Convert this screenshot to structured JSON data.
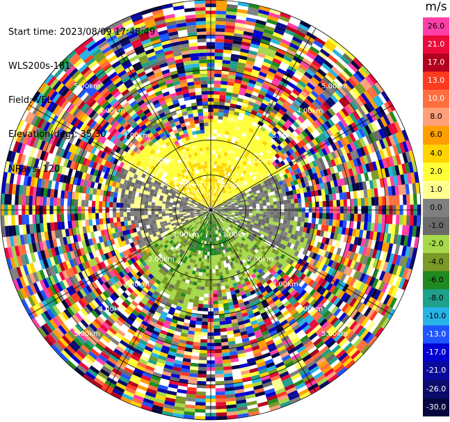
{
  "header": {
    "start_time": "Start time: 2023/08/09 17:48:49",
    "instrument": "WLS200s-181",
    "field": "Field: VEL",
    "elevation": "Elevation(deg): 35.30",
    "nrays": "NRays: 120"
  },
  "colorbar": {
    "unit": "m/s",
    "entries": [
      {
        "label": "26.0",
        "color": "#ff3fa8",
        "text": "#000000"
      },
      {
        "label": "21.0",
        "color": "#ea0b3a",
        "text": "#ffffff"
      },
      {
        "label": "17.0",
        "color": "#b3001e",
        "text": "#ffffff"
      },
      {
        "label": "13.0",
        "color": "#ff3b1f",
        "text": "#ffffff"
      },
      {
        "label": "10.0",
        "color": "#ff6f3f",
        "text": "#ffffff"
      },
      {
        "label": "8.0",
        "color": "#ffa07a",
        "text": "#000000"
      },
      {
        "label": "6.0",
        "color": "#ff9e00",
        "text": "#000000"
      },
      {
        "label": "4.0",
        "color": "#ffd400",
        "text": "#000000"
      },
      {
        "label": "2.0",
        "color": "#ffff3a",
        "text": "#000000"
      },
      {
        "label": "1.0",
        "color": "#ffff90",
        "text": "#000000"
      },
      {
        "label": "0.0",
        "color": "#808080",
        "text": "#000000"
      },
      {
        "label": "-1.0",
        "color": "#6a6a6a",
        "text": "#000000"
      },
      {
        "label": "-2.0",
        "color": "#a6d84a",
        "text": "#000000"
      },
      {
        "label": "-4.0",
        "color": "#7a9a28",
        "text": "#000000"
      },
      {
        "label": "-6.0",
        "color": "#1f8a1f",
        "text": "#000000"
      },
      {
        "label": "-8.0",
        "color": "#1fa08a",
        "text": "#000000"
      },
      {
        "label": "-10.0",
        "color": "#28b4e6",
        "text": "#000000"
      },
      {
        "label": "-13.0",
        "color": "#1f55ff",
        "text": "#ffffff"
      },
      {
        "label": "-17.0",
        "color": "#0000d0",
        "text": "#ffffff"
      },
      {
        "label": "-21.0",
        "color": "#0a0a9a",
        "text": "#ffffff"
      },
      {
        "label": "-26.0",
        "color": "#0b0b6b",
        "text": "#ffffff"
      },
      {
        "label": "-30.0",
        "color": "#06063f",
        "text": "#ffffff"
      }
    ]
  },
  "chart_data": {
    "type": "heatmap",
    "projection": "polar PPI",
    "field": "VEL",
    "unit": "m/s",
    "n_rays": 120,
    "ray_step_deg": 3,
    "max_range_km": 6.0,
    "range_rings_km": [
      1.0,
      2.0,
      3.0,
      4.0,
      5.0,
      6.0
    ],
    "ring_labels": [
      "1.00km",
      "2.00km",
      "3.00km",
      "4.00km",
      "5.00km"
    ],
    "spokes_deg": [
      0,
      30,
      60,
      90,
      120,
      150,
      180,
      210,
      240,
      270,
      300,
      330
    ],
    "velocity_regions": [
      {
        "range_km": [
          0.0,
          2.6
        ],
        "azimuth_deg": [
          270,
          90
        ],
        "dominant_velocity_ms": 2.0,
        "note": "north half yellow/orange"
      },
      {
        "range_km": [
          0.0,
          2.6
        ],
        "azimuth_deg": [
          90,
          270
        ],
        "dominant_velocity_ms": -3.0,
        "note": "south half green"
      },
      {
        "range_km": [
          0.0,
          3.0
        ],
        "azimuth_deg": [
          60,
          120
        ],
        "dominant_velocity_ms": -0.5,
        "note": "east sector gray"
      },
      {
        "range_km": [
          0.0,
          3.0
        ],
        "azimuth_deg": [
          240,
          300
        ],
        "dominant_velocity_ms": -0.5,
        "note": "west sector gray"
      },
      {
        "range_km": [
          2.6,
          6.0
        ],
        "azimuth_deg": [
          0,
          360
        ],
        "dominant_velocity_ms": null,
        "note": "noise, all values"
      }
    ]
  }
}
